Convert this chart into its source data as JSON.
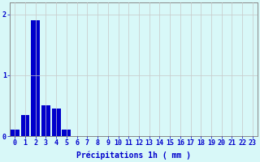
{
  "values": [
    0.1,
    0.35,
    1.9,
    0.5,
    0.45,
    0.1,
    0,
    0,
    0,
    0,
    0,
    0,
    0,
    0,
    0,
    0,
    0,
    0,
    0,
    0,
    0,
    0,
    0,
    0
  ],
  "bar_color": "#0000cc",
  "background_color": "#d8f8f8",
  "grid_color": "#c8c8c8",
  "text_color": "#0000cc",
  "xlabel": "Précipitations 1h ( mm )",
  "ylim": [
    0,
    2.2
  ],
  "xlim": [
    -0.5,
    23.5
  ],
  "yticks": [
    0,
    1,
    2
  ],
  "xtick_labels": [
    "0",
    "1",
    "2",
    "3",
    "4",
    "5",
    "6",
    "7",
    "8",
    "9",
    "10",
    "11",
    "12",
    "13",
    "14",
    "15",
    "16",
    "17",
    "18",
    "19",
    "20",
    "21",
    "22",
    "23"
  ],
  "xlabel_fontsize": 7,
  "tick_fontsize": 6,
  "figsize": [
    3.2,
    2.0
  ],
  "dpi": 100
}
